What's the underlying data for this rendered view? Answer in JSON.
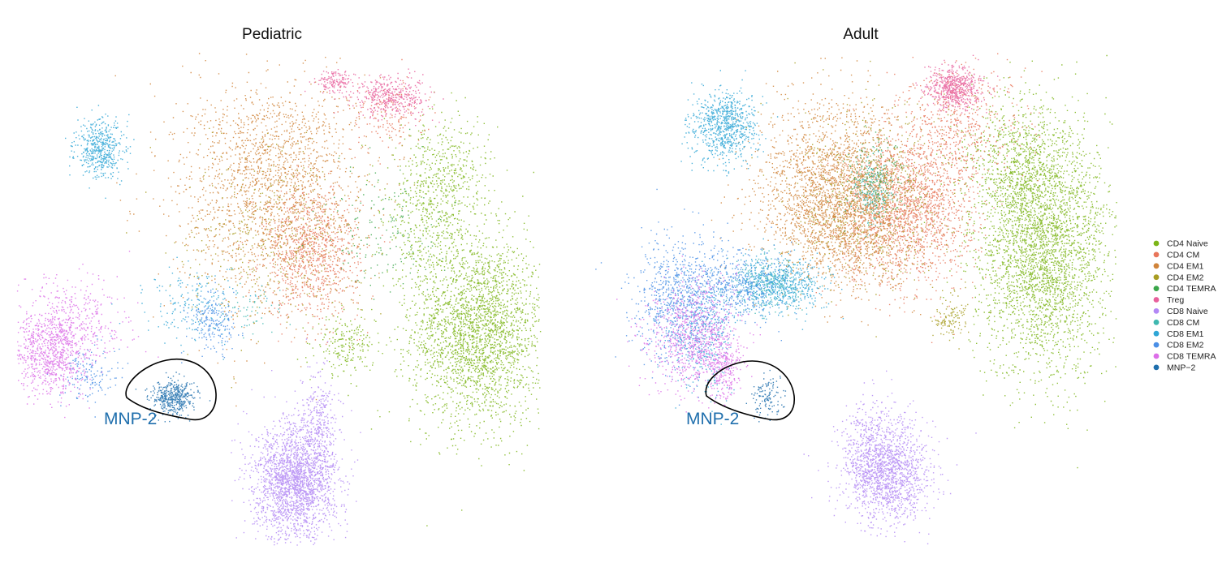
{
  "chart_data": [
    {
      "type": "scatter",
      "title": "Pediatric",
      "xlabel": "",
      "ylabel": "",
      "grid": false,
      "annotation": "MNP-2",
      "series": [
        {
          "name": "CD4 Naive",
          "color": "#7cb518",
          "clusters": [
            {
              "cx": 8.4,
              "cy": -2.1,
              "sx": 1.4,
              "sy": 1.6,
              "n": 2600
            },
            {
              "cx": 6.2,
              "cy": 2.0,
              "sx": 0.9,
              "sy": 1.4,
              "n": 500
            },
            {
              "cx": 2.8,
              "cy": -2.6,
              "sx": 0.6,
              "sy": 0.5,
              "n": 200
            },
            {
              "cx": 7.5,
              "cy": 3.2,
              "sx": 0.8,
              "sy": 1.1,
              "n": 300
            }
          ]
        },
        {
          "name": "CD4 CM",
          "color": "#e8755a",
          "clusters": [
            {
              "cx": 1.4,
              "cy": 0.6,
              "sx": 1.0,
              "sy": 1.1,
              "n": 900
            },
            {
              "cx": 4.6,
              "cy": 5.3,
              "sx": 0.8,
              "sy": 0.6,
              "n": 150
            }
          ]
        },
        {
          "name": "CD4 EM1",
          "color": "#d0843a",
          "clusters": [
            {
              "cx": -0.4,
              "cy": 2.4,
              "sx": 2.0,
              "sy": 2.0,
              "n": 1500
            },
            {
              "cx": 0.0,
              "cy": 4.0,
              "sx": 1.6,
              "sy": 1.2,
              "n": 500
            }
          ]
        },
        {
          "name": "CD4 EM2",
          "color": "#a89d22",
          "clusters": [
            {
              "cx": -0.2,
              "cy": 1.2,
              "sx": 1.9,
              "sy": 1.6,
              "n": 400
            }
          ]
        },
        {
          "name": "CD4 TEMRA",
          "color": "#3aa64a",
          "clusters": [
            {
              "cx": 4.4,
              "cy": 1.4,
              "sx": 1.2,
              "sy": 1.1,
              "n": 150
            }
          ]
        },
        {
          "name": "Treg",
          "color": "#e8609c",
          "clusters": [
            {
              "cx": 4.8,
              "cy": 6.0,
              "sx": 0.8,
              "sy": 0.35,
              "n": 400
            },
            {
              "cx": 2.4,
              "cy": 6.5,
              "sx": 0.4,
              "sy": 0.2,
              "n": 150
            }
          ]
        },
        {
          "name": "CD8 Naive",
          "color": "#b388f5",
          "clusters": [
            {
              "cx": 0.7,
              "cy": -7.3,
              "sx": 0.85,
              "sy": 1.0,
              "n": 2200
            },
            {
              "cx": 1.7,
              "cy": -5.3,
              "sx": 0.4,
              "sy": 1.0,
              "n": 300
            }
          ]
        },
        {
          "name": "CD8 CM",
          "color": "#3fb8b0",
          "clusters": [
            {
              "cx": -1.0,
              "cy": -1.4,
              "sx": 0.6,
              "sy": 0.4,
              "n": 50
            }
          ]
        },
        {
          "name": "CD8 EM1",
          "color": "#2fa6d6",
          "clusters": [
            {
              "cx": -7.5,
              "cy": 4.2,
              "sx": 0.5,
              "sy": 0.5,
              "n": 500
            },
            {
              "cx": -3.5,
              "cy": -1.2,
              "sx": 1.0,
              "sy": 0.6,
              "n": 200
            }
          ]
        },
        {
          "name": "CD8 EM2",
          "color": "#4a8fe6",
          "clusters": [
            {
              "cx": -2.8,
              "cy": -1.8,
              "sx": 0.5,
              "sy": 0.5,
              "n": 200
            },
            {
              "cx": -8.0,
              "cy": -3.6,
              "sx": 0.6,
              "sy": 0.5,
              "n": 150
            }
          ]
        },
        {
          "name": "CD8 TEMRA",
          "color": "#dc6ee8",
          "clusters": [
            {
              "cx": -9.6,
              "cy": -2.9,
              "sx": 0.8,
              "sy": 0.7,
              "n": 800
            },
            {
              "cx": -8.8,
              "cy": -1.8,
              "sx": 1.2,
              "sy": 0.8,
              "n": 400
            }
          ]
        },
        {
          "name": "MNP-2",
          "color": "#1f6fad",
          "clusters": [
            {
              "cx": -4.4,
              "cy": -4.4,
              "sx": 0.45,
              "sy": 0.3,
              "n": 450
            }
          ]
        }
      ]
    },
    {
      "type": "scatter",
      "title": "Adult",
      "xlabel": "",
      "ylabel": "",
      "grid": false,
      "annotation": "MNP-2",
      "series": [
        {
          "name": "CD4 Naive",
          "color": "#7cb518",
          "clusters": [
            {
              "cx": 7.9,
              "cy": 0.8,
              "sx": 1.4,
              "sy": 2.1,
              "n": 3200
            },
            {
              "cx": 6.8,
              "cy": 3.6,
              "sx": 1.2,
              "sy": 1.2,
              "n": 600
            }
          ]
        },
        {
          "name": "CD4 CM",
          "color": "#e8755a",
          "clusters": [
            {
              "cx": 2.2,
              "cy": 2.1,
              "sx": 1.4,
              "sy": 1.3,
              "n": 1800
            },
            {
              "cx": 4.4,
              "cy": 5.0,
              "sx": 1.3,
              "sy": 1.0,
              "n": 500
            }
          ]
        },
        {
          "name": "CD4 EM1",
          "color": "#d0843a",
          "clusters": [
            {
              "cx": -0.8,
              "cy": 2.8,
              "sx": 1.6,
              "sy": 1.5,
              "n": 2200
            },
            {
              "cx": 0.0,
              "cy": 1.4,
              "sx": 1.4,
              "sy": 1.0,
              "n": 600
            }
          ]
        },
        {
          "name": "CD4 EM2",
          "color": "#a89d22",
          "clusters": [
            {
              "cx": 0.8,
              "cy": 2.5,
              "sx": 1.8,
              "sy": 1.6,
              "n": 600
            },
            {
              "cx": 4.0,
              "cy": -1.6,
              "sx": 0.4,
              "sy": 0.4,
              "n": 120
            }
          ]
        },
        {
          "name": "CD4 TEMRA",
          "color": "#3aa64a",
          "clusters": [
            {
              "cx": 0.8,
              "cy": 3.2,
              "sx": 0.7,
              "sy": 0.7,
              "n": 150
            }
          ]
        },
        {
          "name": "Treg",
          "color": "#e8609c",
          "clusters": [
            {
              "cx": 4.2,
              "cy": 6.3,
              "sx": 0.55,
              "sy": 0.35,
              "n": 600
            }
          ]
        },
        {
          "name": "CD8 Naive",
          "color": "#b388f5",
          "clusters": [
            {
              "cx": 1.4,
              "cy": -7.0,
              "sx": 0.85,
              "sy": 0.9,
              "n": 1500
            },
            {
              "cx": 0.5,
              "cy": -5.9,
              "sx": 0.5,
              "sy": 0.8,
              "n": 200
            }
          ]
        },
        {
          "name": "CD8 CM",
          "color": "#3fb8b0",
          "clusters": [
            {
              "cx": 0.8,
              "cy": 2.7,
              "sx": 0.4,
              "sy": 0.6,
              "n": 200
            },
            {
              "cx": -3.6,
              "cy": -0.4,
              "sx": 0.8,
              "sy": 0.5,
              "n": 200
            }
          ]
        },
        {
          "name": "CD8 EM1",
          "color": "#2fa6d6",
          "clusters": [
            {
              "cx": -5.4,
              "cy": 5.0,
              "sx": 0.7,
              "sy": 0.6,
              "n": 800
            },
            {
              "cx": -3.3,
              "cy": -0.5,
              "sx": 1.0,
              "sy": 0.5,
              "n": 700
            },
            {
              "cx": -6.3,
              "cy": -2.4,
              "sx": 0.6,
              "sy": 1.0,
              "n": 300
            }
          ]
        },
        {
          "name": "CD8 EM2",
          "color": "#4a8fe6",
          "clusters": [
            {
              "cx": -7.2,
              "cy": -1.0,
              "sx": 1.0,
              "sy": 1.1,
              "n": 900
            },
            {
              "cx": -5.0,
              "cy": -0.6,
              "sx": 1.0,
              "sy": 0.6,
              "n": 400
            }
          ]
        },
        {
          "name": "CD8 TEMRA",
          "color": "#dc6ee8",
          "clusters": [
            {
              "cx": -6.7,
              "cy": -2.3,
              "sx": 0.95,
              "sy": 0.95,
              "n": 800
            },
            {
              "cx": -5.5,
              "cy": -3.3,
              "sx": 0.35,
              "sy": 0.55,
              "n": 250
            }
          ]
        },
        {
          "name": "MNP-2",
          "color": "#1f6fad",
          "clusters": [
            {
              "cx": -3.6,
              "cy": -4.4,
              "sx": 0.35,
              "sy": 0.35,
              "n": 120
            }
          ]
        }
      ]
    }
  ],
  "legend": {
    "placement": "right",
    "items": [
      {
        "name": "CD4 Naive",
        "color": "#7cb518"
      },
      {
        "name": "CD4 CM",
        "color": "#e8755a"
      },
      {
        "name": "CD4 EM1",
        "color": "#d0843a"
      },
      {
        "name": "CD4 EM2",
        "color": "#a89d22"
      },
      {
        "name": "CD4 TEMRA",
        "color": "#3aa64a"
      },
      {
        "name": "Treg",
        "color": "#e8609c"
      },
      {
        "name": "CD8 Naive",
        "color": "#b388f5"
      },
      {
        "name": "CD8 CM",
        "color": "#3fb8b0"
      },
      {
        "name": "CD8 EM1",
        "color": "#2fa6d6"
      },
      {
        "name": "CD8 EM2",
        "color": "#4a8fe6"
      },
      {
        "name": "CD8 TEMRA",
        "color": "#dc6ee8"
      },
      {
        "name": "MNP−2",
        "color": "#1f6fad"
      }
    ]
  },
  "annotation_color": "#1f6fad"
}
